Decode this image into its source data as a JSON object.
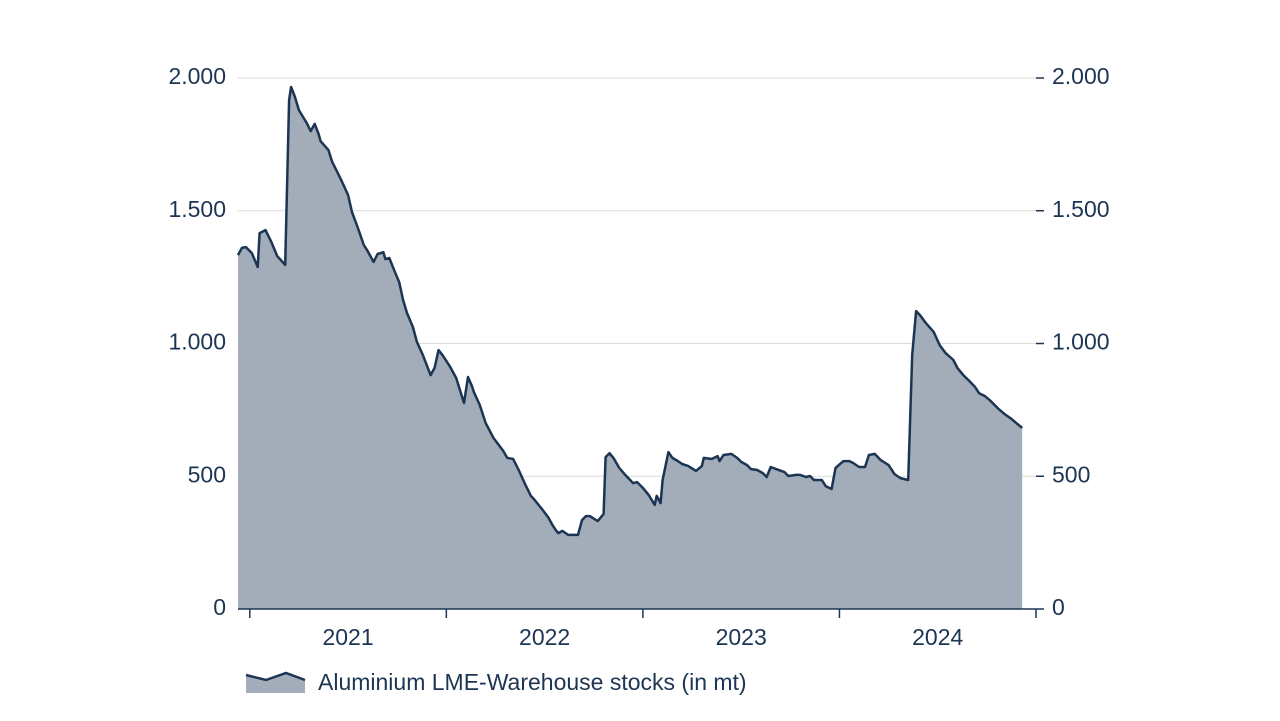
{
  "chart_data": {
    "type": "area",
    "x": [
      2020.94,
      2020.96,
      2020.98,
      2021.01,
      2021.04,
      2021.05,
      2021.08,
      2021.11,
      2021.14,
      2021.18,
      2021.2,
      2021.21,
      2021.23,
      2021.25,
      2021.29,
      2021.31,
      2021.33,
      2021.35,
      2021.36,
      2021.4,
      2021.42,
      2021.44,
      2021.47,
      2021.5,
      2021.52,
      2021.55,
      2021.58,
      2021.6,
      2021.63,
      2021.65,
      2021.68,
      2021.69,
      2021.71,
      2021.73,
      2021.76,
      2021.78,
      2021.8,
      2021.83,
      2021.85,
      2021.88,
      2021.92,
      2021.94,
      2021.96,
      2021.98,
      2022.02,
      2022.05,
      2022.09,
      2022.11,
      2022.13,
      2022.14,
      2022.17,
      2022.2,
      2022.24,
      2022.26,
      2022.29,
      2022.31,
      2022.34,
      2022.37,
      2022.4,
      2022.43,
      2022.45,
      2022.49,
      2022.52,
      2022.54,
      2022.56,
      2022.57,
      2022.59,
      2022.62,
      2022.65,
      2022.67,
      2022.69,
      2022.71,
      2022.73,
      2022.77,
      2022.8,
      2022.81,
      2022.83,
      2022.85,
      2022.88,
      2022.91,
      2022.93,
      2022.95,
      2022.97,
      2023.0,
      2023.03,
      2023.06,
      2023.07,
      2023.09,
      2023.1,
      2023.13,
      2023.15,
      2023.17,
      2023.2,
      2023.23,
      2023.27,
      2023.3,
      2023.31,
      2023.35,
      2023.38,
      2023.39,
      2023.41,
      2023.45,
      2023.48,
      2023.5,
      2023.53,
      2023.55,
      2023.58,
      2023.61,
      2023.63,
      2023.65,
      2023.69,
      2023.72,
      2023.74,
      2023.78,
      2023.8,
      2023.83,
      2023.85,
      2023.87,
      2023.91,
      2023.93,
      2023.96,
      2023.98,
      2024.02,
      2024.05,
      2024.07,
      2024.1,
      2024.13,
      2024.15,
      2024.18,
      2024.21,
      2024.25,
      2024.28,
      2024.31,
      2024.35,
      2024.37,
      2024.39,
      2024.41,
      2024.44,
      2024.48,
      2024.51,
      2024.54,
      2024.58,
      2024.6,
      2024.63,
      2024.66,
      2024.69,
      2024.71,
      2024.74,
      2024.77,
      2024.81,
      2024.84,
      2024.87,
      2024.9,
      2024.93
    ],
    "series": [
      {
        "name": "Aluminium LME-Warehouse stocks (in mt)",
        "color": "#1c3553",
        "fill": "#a3adb9",
        "values": [
          1333,
          1360,
          1363,
          1341,
          1288,
          1416,
          1427,
          1382,
          1329,
          1296,
          1917,
          1966,
          1928,
          1879,
          1830,
          1800,
          1827,
          1789,
          1762,
          1729,
          1683,
          1653,
          1608,
          1559,
          1495,
          1435,
          1371,
          1348,
          1307,
          1337,
          1344,
          1318,
          1322,
          1284,
          1231,
          1164,
          1115,
          1062,
          1006,
          957,
          881,
          908,
          975,
          957,
          911,
          870,
          776,
          874,
          840,
          817,
          768,
          700,
          644,
          625,
          595,
          569,
          565,
          520,
          471,
          426,
          410,
          373,
          343,
          316,
          294,
          286,
          294,
          279,
          279,
          279,
          335,
          350,
          350,
          331,
          358,
          572,
          587,
          569,
          531,
          505,
          490,
          474,
          478,
          456,
          429,
          392,
          426,
          399,
          486,
          591,
          569,
          561,
          546,
          539,
          520,
          539,
          569,
          565,
          576,
          557,
          580,
          584,
          569,
          554,
          542,
          527,
          524,
          512,
          497,
          535,
          524,
          516,
          501,
          505,
          505,
          497,
          501,
          486,
          486,
          463,
          452,
          531,
          557,
          557,
          550,
          535,
          535,
          580,
          584,
          561,
          542,
          508,
          493,
          486,
          957,
          1122,
          1107,
          1077,
          1043,
          994,
          964,
          938,
          908,
          881,
          859,
          836,
          813,
          802,
          783,
          753,
          734,
          719,
          700,
          682
        ]
      }
    ],
    "xlim": [
      2020.94,
      2025
    ],
    "xticks": [
      {
        "value": 2021.5,
        "label": "2021"
      },
      {
        "value": 2022.5,
        "label": "2022"
      },
      {
        "value": 2023.5,
        "label": "2023"
      },
      {
        "value": 2024.5,
        "label": "2024"
      }
    ],
    "ylim": [
      0,
      2000
    ],
    "yticks": [
      0,
      500,
      {
        "value": 1000,
        "label": "1.000"
      },
      {
        "value": 1500,
        "label": "1.500"
      },
      {
        "value": 2000,
        "label": "2.000"
      }
    ],
    "y2lim": [
      0,
      2000
    ],
    "y2ticks": [
      0,
      500,
      {
        "value": 1000,
        "label": "1.000"
      },
      {
        "value": 1500,
        "label": "1.500"
      },
      {
        "value": 2000,
        "label": "2.000"
      }
    ],
    "grid": true
  }
}
